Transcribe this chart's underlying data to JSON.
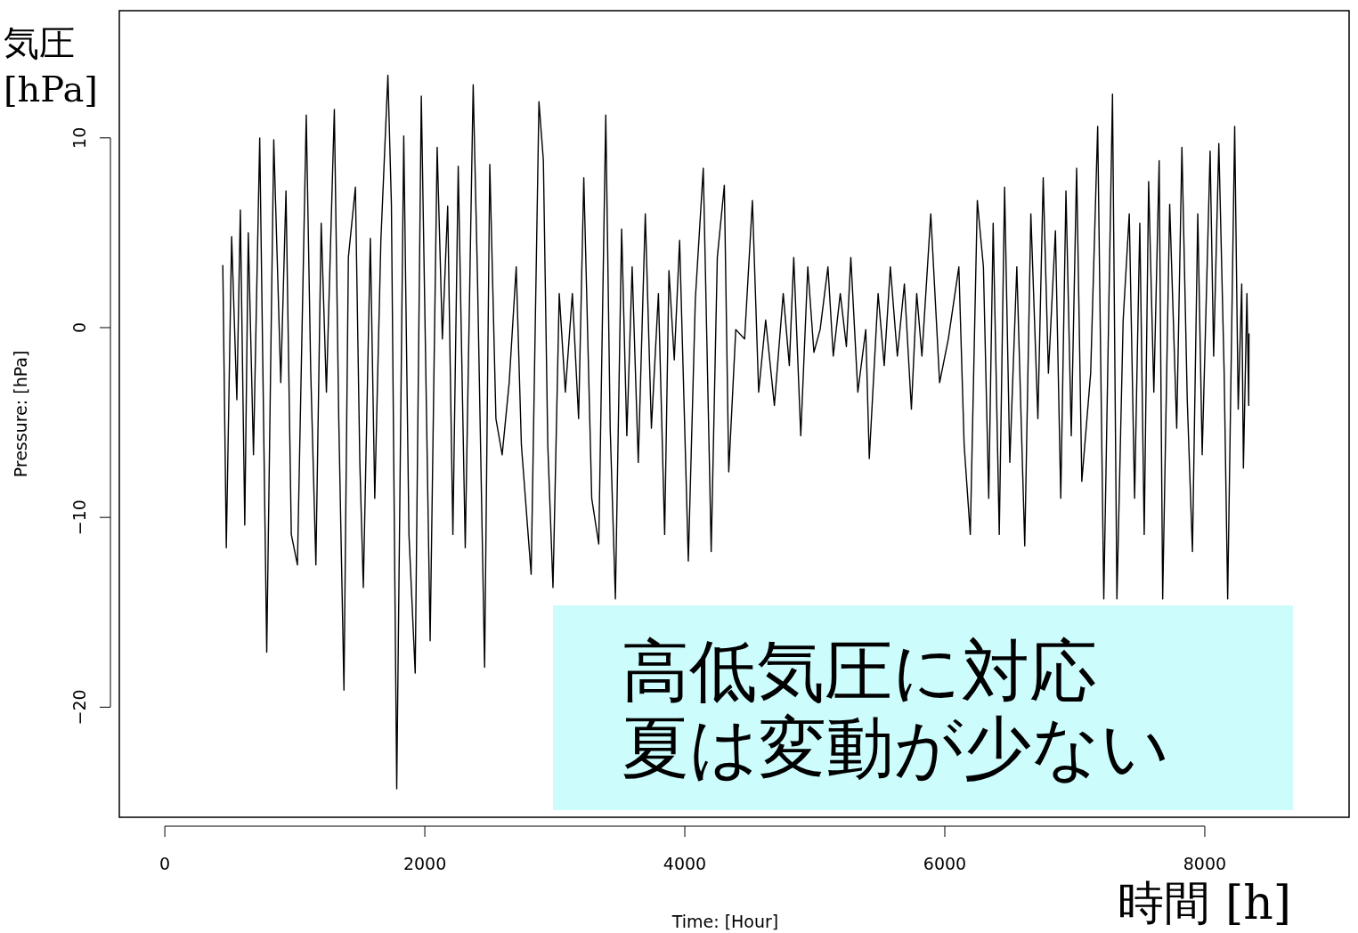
{
  "chart_data": {
    "type": "line",
    "xlabel": "Time: [Hour]",
    "ylabel": "Pressure: [hPa]",
    "annotations": [
      "気圧 [hPa]",
      "高低気圧に対応",
      "夏は変動が少ない",
      "時間 [h]"
    ],
    "xlim": [
      -350,
      9110
    ],
    "xticks": [
      0,
      2000,
      4000,
      6000,
      8000
    ],
    "ylim": [
      -25.8,
      16.7
    ],
    "yticks": [
      -20,
      -10,
      0,
      10
    ],
    "grid": false,
    "marker": "none",
    "line_style": "solid",
    "x": [
      446,
      473,
      514,
      554,
      581,
      615,
      642,
      682,
      730,
      784,
      838,
      892,
      932,
      973,
      1020,
      1088,
      1122,
      1162,
      1203,
      1243,
      1304,
      1338,
      1378,
      1412,
      1466,
      1500,
      1527,
      1581,
      1615,
      1662,
      1716,
      1743,
      1784,
      1838,
      1878,
      1926,
      1973,
      2007,
      2041,
      2095,
      2135,
      2176,
      2216,
      2257,
      2311,
      2372,
      2405,
      2460,
      2500,
      2547,
      2595,
      2649,
      2703,
      2743,
      2818,
      2878,
      2912,
      2946,
      2986,
      3034,
      3081,
      3135,
      3183,
      3223,
      3284,
      3338,
      3392,
      3426,
      3466,
      3514,
      3554,
      3595,
      3642,
      3696,
      3743,
      3797,
      3845,
      3878,
      3919,
      3960,
      4027,
      4081,
      4142,
      4189,
      4203,
      4250,
      4304,
      4338,
      4392,
      4460,
      4520,
      4568,
      4622,
      4689,
      4757,
      4804,
      4838,
      4892,
      4946,
      4993,
      5041,
      5101,
      5142,
      5196,
      5243,
      5277,
      5331,
      5392,
      5419,
      5487,
      5534,
      5581,
      5635,
      5689,
      5743,
      5784,
      5824,
      5892,
      5960,
      6027,
      6108,
      6149,
      6196,
      6250,
      6297,
      6338,
      6372,
      6419,
      6460,
      6500,
      6554,
      6615,
      6662,
      6716,
      6757,
      6797,
      6851,
      6892,
      6932,
      6973,
      7014,
      7054,
      7122,
      7176,
      7223,
      7290,
      7324,
      7372,
      7419,
      7460,
      7500,
      7534,
      7568,
      7608,
      7649,
      7676,
      7730,
      7784,
      7824,
      7865,
      7905,
      7946,
      7980,
      8041,
      8068,
      8108,
      8149,
      8176,
      8230,
      8257,
      8284,
      8297,
      8324,
      8338,
      8340
    ],
    "series": [
      {
        "color": "#000000",
        "values": [
          3.3,
          -11.6,
          4.8,
          -3.8,
          6.2,
          -10.4,
          5.0,
          -6.7,
          10.0,
          -17.1,
          9.9,
          -2.9,
          7.2,
          -10.9,
          -12.5,
          11.2,
          -2.2,
          -12.5,
          5.5,
          -3.4,
          11.5,
          -4.8,
          -19.1,
          3.7,
          7.4,
          -7.1,
          -13.7,
          4.7,
          -9.0,
          4.6,
          13.3,
          6.5,
          -24.3,
          10.1,
          -10.9,
          -18.2,
          12.2,
          -2.0,
          -16.5,
          9.5,
          -0.6,
          6.4,
          -10.9,
          8.5,
          -11.6,
          12.8,
          2.7,
          -17.9,
          8.6,
          -4.8,
          -6.7,
          -2.9,
          3.2,
          -6.2,
          -13.0,
          11.9,
          8.8,
          -6.2,
          -13.7,
          1.8,
          -3.4,
          1.8,
          -4.8,
          7.9,
          -9.0,
          -11.4,
          11.2,
          -5.3,
          -14.3,
          5.2,
          -5.7,
          3.2,
          -7.1,
          6.0,
          -5.3,
          1.8,
          -10.9,
          3.0,
          -1.7,
          4.6,
          -12.3,
          1.5,
          8.4,
          -7.1,
          -11.8,
          3.7,
          7.5,
          -7.6,
          -0.1,
          -0.6,
          6.7,
          -3.4,
          0.4,
          -4.1,
          1.8,
          -2.0,
          3.7,
          -5.7,
          3.2,
          -1.3,
          -0.1,
          3.2,
          -1.5,
          1.8,
          -1.0,
          3.7,
          -3.4,
          -0.1,
          -6.9,
          1.8,
          -2.0,
          3.2,
          -1.5,
          2.3,
          -4.3,
          1.8,
          -1.5,
          6.0,
          -2.9,
          -0.6,
          3.2,
          -6.2,
          -10.9,
          6.7,
          3.2,
          -9.0,
          5.5,
          -10.9,
          7.4,
          -7.1,
          3.2,
          -11.5,
          6.0,
          -4.8,
          7.9,
          -2.4,
          5.1,
          -9.0,
          7.2,
          -5.7,
          8.4,
          -8.1,
          -2.4,
          10.6,
          -14.3,
          12.3,
          -14.3,
          0.4,
          6.0,
          -9.0,
          5.5,
          -10.9,
          7.7,
          -3.4,
          8.8,
          -14.3,
          6.5,
          -5.3,
          9.5,
          -3.8,
          -11.8,
          6.0,
          -6.7,
          9.3,
          -1.5,
          9.7,
          -2.4,
          -14.3,
          10.6,
          -4.3,
          2.3,
          -7.4,
          1.8,
          -4.1,
          -0.3
        ]
      }
    ]
  }
}
